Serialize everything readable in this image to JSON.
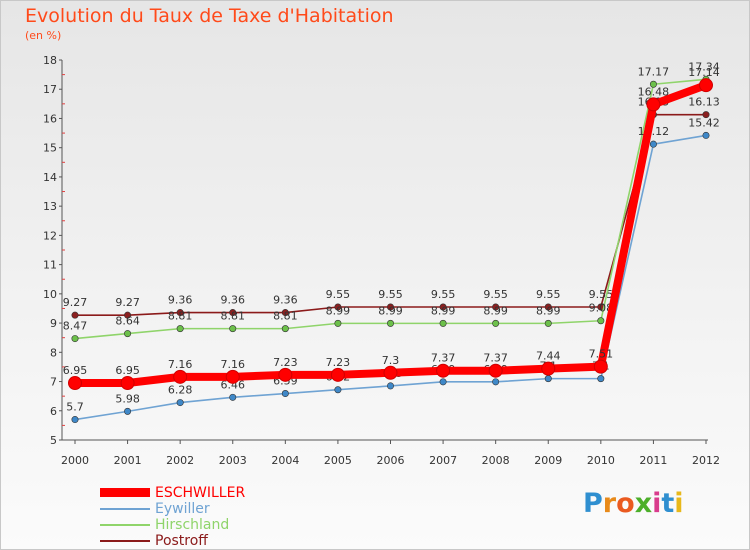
{
  "header": {
    "title": "Evolution du Taux de Taxe d'Habitation",
    "unit": "(en %)"
  },
  "logo": {
    "letters": [
      "P",
      "r",
      "o",
      "x",
      "i",
      "t",
      "i"
    ],
    "colors": [
      "#2f8fd0",
      "#e88a1a",
      "#ea5a20",
      "#4caf2a",
      "#d93c8c",
      "#2f8fd0",
      "#e8b81a"
    ]
  },
  "chart_data": {
    "type": "line",
    "title": "Evolution du Taux de Taxe d'Habitation",
    "ylabel": "(en %)",
    "xlabel": "",
    "ylim": [
      5,
      18
    ],
    "yticks": [
      "5",
      "6",
      "7",
      "8",
      "9",
      "10",
      "11",
      "12",
      "13",
      "14",
      "15",
      "16",
      "17",
      "18"
    ],
    "categories": [
      "2000",
      "2001",
      "2002",
      "2003",
      "2004",
      "2005",
      "2006",
      "2007",
      "2008",
      "2009",
      "2010",
      "2011",
      "2012"
    ],
    "grid": false,
    "legend_position": "bottom-left",
    "series": [
      {
        "name": "Postroff",
        "color": "#8b1a1a",
        "fill": "#8b2020",
        "values": [
          9.27,
          9.27,
          9.36,
          9.36,
          9.36,
          9.55,
          9.55,
          9.55,
          9.55,
          9.55,
          9.55,
          16.13,
          16.13
        ],
        "labels": [
          "9.27",
          "9.27",
          "9.36",
          "9.36",
          "9.36",
          "9.55",
          "9.55",
          "9.55",
          "9.55",
          "9.55",
          "9.55",
          "16.13",
          "16.13"
        ]
      },
      {
        "name": "Hirschland",
        "color": "#8fd46a",
        "fill": "#6cc04a",
        "values": [
          8.47,
          8.64,
          8.81,
          8.81,
          8.81,
          8.99,
          8.99,
          8.99,
          8.99,
          8.99,
          9.08,
          17.17,
          17.34
        ],
        "labels": [
          "8.47",
          "8.64",
          "8.81",
          "8.81",
          "8.81",
          "8.99",
          "8.99",
          "8.99",
          "8.99",
          "8.99",
          "9.08",
          "17.17",
          "17.34"
        ]
      },
      {
        "name": "Eywiller",
        "color": "#6fa3d3",
        "fill": "#3f88c8",
        "values": [
          5.7,
          5.98,
          6.28,
          6.46,
          6.59,
          6.72,
          6.85,
          6.99,
          6.99,
          7.1,
          7.1,
          15.12,
          15.42
        ],
        "labels": [
          "5.7",
          "5.98",
          "6.28",
          "6.46",
          "6.59",
          "6.72",
          "6.85",
          "6.99",
          "6.99",
          "7.1",
          "7.1",
          "15.12",
          "15.42"
        ]
      },
      {
        "name": "ESCHWILLER",
        "color": "#ff0000",
        "fill": "#ff0000",
        "values": [
          6.95,
          6.95,
          7.16,
          7.16,
          7.23,
          7.23,
          7.3,
          7.37,
          7.37,
          7.44,
          7.51,
          16.48,
          17.14
        ],
        "labels": [
          "6.95",
          "6.95",
          "7.16",
          "7.16",
          "7.23",
          "7.23",
          "7.3",
          "7.37",
          "7.37",
          "7.44",
          "7.51",
          "16.48",
          "17.14"
        ]
      }
    ]
  }
}
